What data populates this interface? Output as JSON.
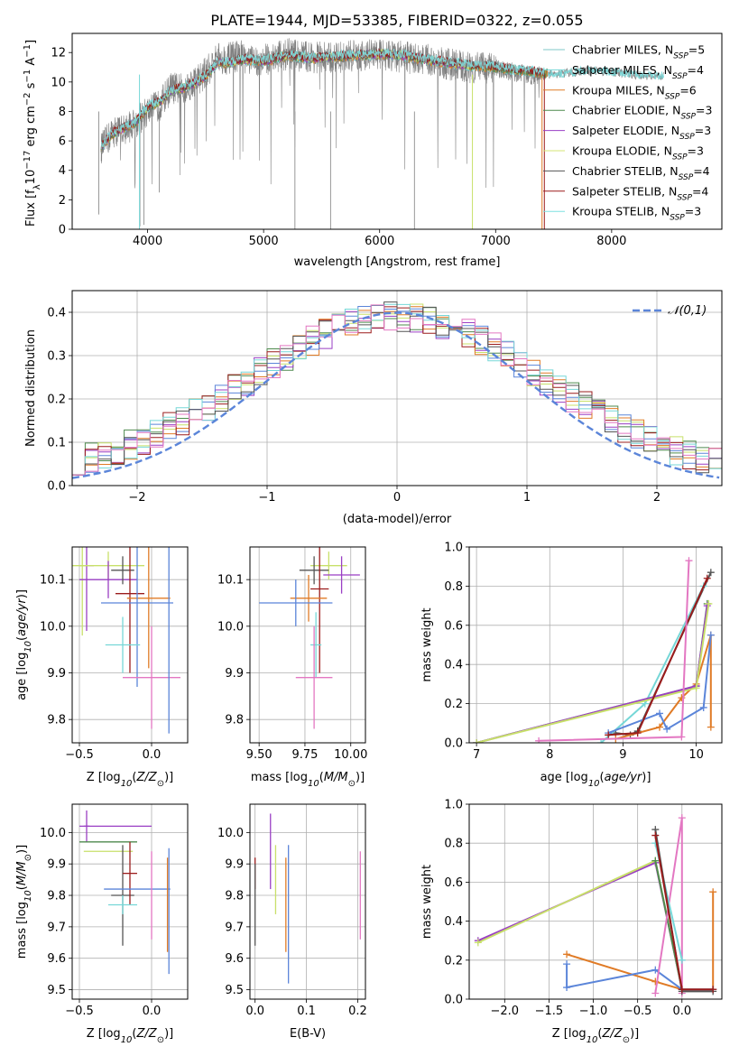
{
  "figure": {
    "title": "PLATE=1944, MJD=53385, FIBERID=0322, z=0.055"
  },
  "series_styles": [
    {
      "name": "Chabrier MILES, N_SSP=5",
      "color": "#808080"
    },
    {
      "name": "Salpeter MILES, N_SSP=4",
      "color": "#76d7d7"
    },
    {
      "name": "Kroupa MILES, N_SSP=6",
      "color": "#e07b26"
    },
    {
      "name": "Chabrier ELODIE, N_SSP=3",
      "color": "#4e8a4e"
    },
    {
      "name": "Salpeter ELODIE, N_SSP=3",
      "color": "#9a3fc4"
    },
    {
      "name": "Kroupa ELODIE, N_SSP=3",
      "color": "#c8e06a"
    },
    {
      "name": "Chabrier STELIB, N_SSP=4",
      "color": "#555555"
    },
    {
      "name": "Salpeter STELIB, N_SSP=4",
      "color": "#9b1c1c"
    },
    {
      "name": "Kroupa STELIB, N_SSP=3",
      "color": "#7fe0e0"
    }
  ],
  "legend_spectrum": [
    {
      "label": "Chabrier MILES, N",
      "sub": "SSP",
      "tail": "=5",
      "color": "#7fc7c7"
    },
    {
      "label": "Salpeter MILES, N",
      "sub": "SSP",
      "tail": "=4",
      "color": "#76d7d7"
    },
    {
      "label": "Kroupa MILES, N",
      "sub": "SSP",
      "tail": "=6",
      "color": "#e07b26"
    },
    {
      "label": "Chabrier ELODIE, N",
      "sub": "SSP",
      "tail": "=3",
      "color": "#4e8a4e"
    },
    {
      "label": "Salpeter ELODIE, N",
      "sub": "SSP",
      "tail": "=3",
      "color": "#9a3fc4"
    },
    {
      "label": "Kroupa ELODIE, N",
      "sub": "SSP",
      "tail": "=3",
      "color": "#d6e676"
    },
    {
      "label": "Chabrier STELIB, N",
      "sub": "SSP",
      "tail": "=4",
      "color": "#555555"
    },
    {
      "label": "Salpeter STELIB, N",
      "sub": "SSP",
      "tail": "=4",
      "color": "#9b1c1c"
    },
    {
      "label": "Kroupa STELIB, N",
      "sub": "SSP",
      "tail": "=3",
      "color": "#7fe0e0"
    }
  ],
  "chart_data": [
    {
      "id": "spectrum",
      "type": "line",
      "xlabel": "wavelength [Angstrom, rest frame]",
      "ylabel": "Flux [f_λ 10^-17 erg cm^-2 s^-1 A^-1]",
      "ylabel_parts": [
        "Flux [f",
        "λ",
        "10",
        "−17",
        " erg cm",
        "−2",
        " s",
        "−1",
        " A",
        "−1",
        "]"
      ],
      "xlim": [
        3350,
        8950
      ],
      "ylim": [
        0,
        13.3
      ],
      "xticks": [
        4000,
        5000,
        6000,
        7000,
        8000
      ],
      "yticks": [
        0,
        2,
        4,
        6,
        8,
        10,
        12
      ],
      "grid": false,
      "legend_position": "top-right",
      "observed_anchor": {
        "x": [
          3600,
          3700,
          3800,
          3900,
          4000,
          4100,
          4200,
          4300,
          4400,
          4500,
          4600,
          4700,
          4800,
          4900,
          5000,
          5200,
          5400,
          5600,
          5800,
          6000,
          6200,
          6400,
          6600,
          6800,
          7000,
          7200,
          7400
        ],
        "y": [
          5.5,
          6.6,
          6.8,
          7.2,
          8.0,
          8.4,
          9.6,
          9.5,
          10.0,
          10.6,
          11.6,
          11.6,
          11.8,
          11.4,
          11.5,
          11.9,
          11.7,
          11.6,
          11.8,
          11.9,
          11.7,
          11.5,
          11.2,
          11.0,
          10.9,
          10.6,
          10.4
        ]
      },
      "model_anchor": {
        "x": [
          3600,
          3700,
          3800,
          3900,
          4000,
          4100,
          4200,
          4300,
          4400,
          4500,
          4600,
          4700,
          4800,
          4900,
          5000,
          5200,
          5400,
          5600,
          5800,
          6000,
          6200,
          6400,
          6600,
          6800,
          7000,
          7200,
          7400,
          7600,
          7800,
          8000,
          8200,
          8400
        ],
        "y": [
          5.6,
          6.5,
          6.9,
          7.3,
          8.3,
          8.6,
          9.4,
          9.6,
          9.9,
          10.4,
          11.3,
          11.3,
          11.5,
          11.5,
          11.4,
          11.8,
          11.6,
          11.7,
          11.8,
          11.9,
          11.8,
          11.5,
          11.3,
          11.1,
          11.0,
          10.8,
          10.6,
          10.7,
          10.9,
          10.8,
          10.6,
          10.5
        ]
      },
      "model_ranges_x": [
        [
          3600,
          8450
        ],
        [
          3600,
          8450
        ],
        [
          3600,
          7450
        ],
        [
          3600,
          7450
        ],
        [
          3600,
          6800
        ],
        [
          3600,
          6800
        ],
        [
          3600,
          7420
        ],
        [
          3600,
          7420
        ],
        [
          3600,
          7420
        ]
      ]
    },
    {
      "id": "residual-histogram",
      "type": "histogram",
      "xlabel": "(data-model)/error",
      "ylabel": "Normed distribution",
      "xlim": [
        -2.5,
        2.5
      ],
      "ylim": [
        0,
        0.45
      ],
      "xticks": [
        -2,
        -1,
        0,
        1,
        2
      ],
      "yticks": [
        0.0,
        0.1,
        0.2,
        0.3,
        0.4
      ],
      "grid": true,
      "bin_width": 0.1,
      "reference_curve": {
        "name": "𝒩(0,1)",
        "mean": 0,
        "sigma": 1,
        "color": "#5b85d9"
      },
      "legend_position": "top-right"
    },
    {
      "id": "age-vs-Z",
      "type": "errorbar",
      "xlabel": "Z [log10(Z/Z⊙)]",
      "ylabel": "age  [log10(age/yr)]",
      "xlim": [
        -0.55,
        0.25
      ],
      "ylim": [
        9.75,
        10.17
      ],
      "xticks": [
        -0.5,
        0.0
      ],
      "yticks": [
        9.8,
        9.9,
        10.0,
        10.1
      ],
      "grid": true,
      "points": [
        {
          "x": -0.45,
          "y": 10.13,
          "xerr": 0.05,
          "yerr": 0.14,
          "color": "#9a3fc4"
        },
        {
          "x": -0.48,
          "y": 10.13,
          "xerr": 0.02,
          "yerr": 0.15,
          "color": "#c8e06a"
        },
        {
          "x": -0.3,
          "y": 10.13,
          "xerr": 0.25,
          "yerr": 0.03,
          "color": "#c8e06a"
        },
        {
          "x": -0.3,
          "y": 10.1,
          "xerr": 0.2,
          "yerr": 0.04,
          "color": "#9a3fc4"
        },
        {
          "x": -0.2,
          "y": 10.12,
          "xerr": 0.08,
          "yerr": 0.03,
          "color": "#555555"
        },
        {
          "x": -0.15,
          "y": 10.07,
          "xerr": 0.1,
          "yerr": 0.17,
          "color": "#9b1c1c"
        },
        {
          "x": -0.02,
          "y": 10.06,
          "xerr": 0.15,
          "yerr": 0.15,
          "color": "#e07b26"
        },
        {
          "x": -0.1,
          "y": 10.05,
          "xerr": 0.25,
          "yerr": 0.18,
          "color": "#5b85d9"
        },
        {
          "x": -0.2,
          "y": 9.96,
          "xerr": 0.12,
          "yerr": 0.06,
          "color": "#76d7d7"
        },
        {
          "x": 0.0,
          "y": 9.89,
          "xerr": 0.2,
          "yerr": 0.11,
          "color": "#e377c2"
        },
        {
          "x": 0.12,
          "y": 10.0,
          "xerr": 0.0,
          "yerr": 0.23,
          "color": "#5b85d9"
        }
      ]
    },
    {
      "id": "age-vs-mass",
      "type": "errorbar",
      "xlabel": "mass [log10(M/M⊙)]",
      "ylabel": "",
      "xlim": [
        9.45,
        10.08
      ],
      "ylim": [
        9.75,
        10.17
      ],
      "xticks": [
        9.5,
        9.75,
        10.0
      ],
      "yticks": [
        9.8,
        9.9,
        10.0,
        10.1
      ],
      "grid": true,
      "points": [
        {
          "x": 9.88,
          "y": 10.13,
          "xerr": 0.1,
          "yerr": 0.03,
          "color": "#c8e06a"
        },
        {
          "x": 9.95,
          "y": 10.11,
          "xerr": 0.1,
          "yerr": 0.04,
          "color": "#9a3fc4"
        },
        {
          "x": 9.8,
          "y": 10.12,
          "xerr": 0.08,
          "yerr": 0.03,
          "color": "#555555"
        },
        {
          "x": 9.83,
          "y": 10.08,
          "xerr": 0.05,
          "yerr": 0.18,
          "color": "#9b1c1c"
        },
        {
          "x": 9.77,
          "y": 10.06,
          "xerr": 0.1,
          "yerr": 0.05,
          "color": "#e07b26"
        },
        {
          "x": 9.7,
          "y": 10.05,
          "xerr": 0.2,
          "yerr": 0.05,
          "color": "#5b85d9"
        },
        {
          "x": 9.81,
          "y": 9.96,
          "xerr": 0.03,
          "yerr": 0.07,
          "color": "#76d7d7"
        },
        {
          "x": 9.8,
          "y": 9.89,
          "xerr": 0.1,
          "yerr": 0.11,
          "color": "#e377c2"
        }
      ]
    },
    {
      "id": "mass-weight-vs-age",
      "type": "line",
      "xlabel": "age  [log10(age/yr)]",
      "ylabel": "mass weight",
      "xlim": [
        6.9,
        10.35
      ],
      "ylim": [
        0,
        1.0
      ],
      "xticks": [
        7,
        8,
        9,
        10
      ],
      "yticks": [
        0.0,
        0.2,
        0.4,
        0.6,
        0.8,
        1.0
      ],
      "grid": true,
      "series": [
        {
          "name": "Chabrier MILES",
          "color": "#555555",
          "x": [
            8.9,
            9.1,
            9.2,
            10.2
          ],
          "y": [
            0.05,
            0.04,
            0.06,
            0.87
          ]
        },
        {
          "name": "Salpeter MILES",
          "color": "#76d7d7",
          "x": [
            8.7,
            9.3,
            10.1
          ],
          "y": [
            0.0,
            0.2,
            0.8
          ]
        },
        {
          "name": "Kroupa MILES",
          "color": "#e07b26",
          "x": [
            8.9,
            9.5,
            9.8,
            10.0,
            10.2,
            10.2
          ],
          "y": [
            0.02,
            0.08,
            0.23,
            0.3,
            0.55,
            0.08
          ]
        },
        {
          "name": "Chabrier ELODIE",
          "color": "#4e8a4e",
          "x": [
            7.0,
            10.0,
            10.15
          ],
          "y": [
            0.0,
            0.29,
            0.71
          ]
        },
        {
          "name": "Salpeter ELODIE",
          "color": "#9a3fc4",
          "x": [
            7.0,
            10.0,
            10.15
          ],
          "y": [
            0.0,
            0.29,
            0.7
          ]
        },
        {
          "name": "Kroupa ELODIE",
          "color": "#c8e06a",
          "x": [
            7.0,
            10.0,
            10.17
          ],
          "y": [
            0.0,
            0.28,
            0.71
          ]
        },
        {
          "name": "Chabrier STELIB",
          "color": "#5b85d9",
          "x": [
            8.8,
            9.5,
            9.6,
            10.1,
            10.2
          ],
          "y": [
            0.05,
            0.15,
            0.07,
            0.18,
            0.55
          ]
        },
        {
          "name": "Salpeter STELIB",
          "color": "#9b1c1c",
          "x": [
            8.8,
            9.2,
            10.15
          ],
          "y": [
            0.04,
            0.05,
            0.84
          ]
        },
        {
          "name": "Kroupa STELIB",
          "color": "#e377c2",
          "x": [
            7.85,
            9.8,
            9.9
          ],
          "y": [
            0.01,
            0.03,
            0.93
          ]
        }
      ]
    },
    {
      "id": "mass-vs-Z",
      "type": "errorbar",
      "xlabel": "Z [log10(Z/Z⊙)]",
      "ylabel": "mass [log10(M/M⊙)]",
      "xlim": [
        -0.55,
        0.25
      ],
      "ylim": [
        9.47,
        10.09
      ],
      "xticks": [
        -0.5,
        0.0
      ],
      "yticks": [
        9.5,
        9.6,
        9.7,
        9.8,
        9.9,
        10.0
      ],
      "grid": true,
      "points": [
        {
          "x": -0.45,
          "y": 10.02,
          "xerr": 0.02,
          "yerr": 0.05,
          "color": "#9a3fc4"
        },
        {
          "x": -0.25,
          "y": 10.02,
          "xerr": 0.25,
          "yerr": 0.0,
          "color": "#9a3fc4"
        },
        {
          "x": -0.3,
          "y": 9.97,
          "xerr": 0.2,
          "yerr": 0.0,
          "color": "#4e8a4e"
        },
        {
          "x": -0.3,
          "y": 9.94,
          "xerr": 0.17,
          "yerr": 0.0,
          "color": "#c8e06a"
        },
        {
          "x": -0.2,
          "y": 9.8,
          "xerr": 0.08,
          "yerr": 0.16,
          "color": "#555555"
        },
        {
          "x": -0.15,
          "y": 9.87,
          "xerr": 0.05,
          "yerr": 0.1,
          "color": "#9b1c1c"
        },
        {
          "x": -0.1,
          "y": 9.82,
          "xerr": 0.23,
          "yerr": 0.0,
          "color": "#5b85d9"
        },
        {
          "x": -0.2,
          "y": 9.77,
          "xerr": 0.1,
          "yerr": 0.03,
          "color": "#76d7d7"
        },
        {
          "x": 0.12,
          "y": 9.75,
          "xerr": 0.0,
          "yerr": 0.2,
          "color": "#5b85d9"
        },
        {
          "x": 0.11,
          "y": 9.77,
          "xerr": 0.0,
          "yerr": 0.15,
          "color": "#e07b26"
        },
        {
          "x": 0.0,
          "y": 9.8,
          "xerr": 0.0,
          "yerr": 0.14,
          "color": "#e377c2"
        }
      ]
    },
    {
      "id": "mass-vs-EBV",
      "type": "errorbar",
      "xlabel": "E(B-V)",
      "ylabel": "",
      "xlim": [
        -0.01,
        0.215
      ],
      "ylim": [
        9.47,
        10.09
      ],
      "xticks": [
        0.0,
        0.1,
        0.2
      ],
      "yticks": [
        9.5,
        9.6,
        9.7,
        9.8,
        9.9,
        10.0
      ],
      "grid": true,
      "points": [
        {
          "x": 0.0,
          "y": 9.87,
          "xerr": 0,
          "yerr": 0.05,
          "color": "#9b1c1c"
        },
        {
          "x": 0.0,
          "y": 9.77,
          "xerr": 0,
          "yerr": 0.13,
          "color": "#555555"
        },
        {
          "x": 0.03,
          "y": 9.94,
          "xerr": 0,
          "yerr": 0.12,
          "color": "#9a3fc4"
        },
        {
          "x": 0.04,
          "y": 9.85,
          "xerr": 0,
          "yerr": 0.11,
          "color": "#c8e06a"
        },
        {
          "x": 0.06,
          "y": 9.77,
          "xerr": 0,
          "yerr": 0.15,
          "color": "#e07b26"
        },
        {
          "x": 0.065,
          "y": 9.74,
          "xerr": 0,
          "yerr": 0.22,
          "color": "#5b85d9"
        },
        {
          "x": 0.205,
          "y": 9.8,
          "xerr": 0,
          "yerr": 0.14,
          "color": "#e377c2"
        }
      ]
    },
    {
      "id": "mass-weight-vs-Z",
      "type": "line",
      "xlabel": "Z [log10(Z/Z⊙)]",
      "ylabel": "mass weight",
      "xlim": [
        -2.4,
        0.45
      ],
      "ylim": [
        0,
        1.0
      ],
      "xticks": [
        -2.0,
        -1.5,
        -1.0,
        -0.5,
        0.0
      ],
      "yticks": [
        0.0,
        0.2,
        0.4,
        0.6,
        0.8,
        1.0
      ],
      "grid": true,
      "series": [
        {
          "name": "Salpeter ELODIE",
          "color": "#9a3fc4",
          "x": [
            -2.3,
            -0.3,
            0.0
          ],
          "y": [
            0.3,
            0.7,
            0.05
          ]
        },
        {
          "name": "Kroupa ELODIE",
          "color": "#c8e06a",
          "x": [
            -2.3,
            -0.3,
            0.0
          ],
          "y": [
            0.29,
            0.71,
            0.05
          ]
        },
        {
          "name": "Chabrier ELODIE",
          "color": "#4e8a4e",
          "x": [
            -0.3,
            0.0
          ],
          "y": [
            0.71,
            0.05
          ]
        },
        {
          "name": "Kroupa MILES",
          "color": "#e07b26",
          "x": [
            -1.3,
            -0.3,
            0.0,
            0.35,
            0.35
          ],
          "y": [
            0.23,
            0.09,
            0.05,
            0.05,
            0.55
          ]
        },
        {
          "name": "Chabrier STELIB",
          "color": "#5b85d9",
          "x": [
            -1.3,
            -1.3,
            -0.3,
            0.0,
            0.35
          ],
          "y": [
            0.18,
            0.06,
            0.15,
            0.05,
            0.05
          ]
        },
        {
          "name": "Kroupa STELIB",
          "color": "#e377c2",
          "x": [
            -0.3,
            0.0,
            0.0
          ],
          "y": [
            0.03,
            0.93,
            0.03
          ]
        },
        {
          "name": "Salpeter MILES",
          "color": "#76d7d7",
          "x": [
            -0.3,
            0.0
          ],
          "y": [
            0.8,
            0.2
          ]
        },
        {
          "name": "Chabrier MILES",
          "color": "#555555",
          "x": [
            -0.3,
            0.0,
            0.35
          ],
          "y": [
            0.87,
            0.04,
            0.04
          ]
        },
        {
          "name": "Salpeter STELIB",
          "color": "#9b1c1c",
          "x": [
            -0.3,
            0.0,
            0.35
          ],
          "y": [
            0.84,
            0.05,
            0.05
          ]
        }
      ]
    }
  ]
}
